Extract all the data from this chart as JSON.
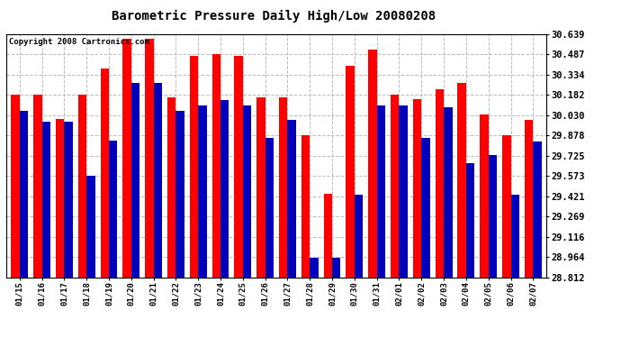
{
  "title": "Barometric Pressure Daily High/Low 20080208",
  "copyright": "Copyright 2008 Cartronics.com",
  "background_color": "#ffffff",
  "plot_bg_color": "#ffffff",
  "bar_color_high": "#ff0000",
  "bar_color_low": "#0000bb",
  "grid_color": "#bbbbbb",
  "categories": [
    "01/15",
    "01/16",
    "01/17",
    "01/18",
    "01/19",
    "01/20",
    "01/21",
    "01/22",
    "01/23",
    "01/24",
    "01/25",
    "01/26",
    "01/27",
    "01/28",
    "01/29",
    "01/30",
    "01/31",
    "02/01",
    "02/02",
    "02/03",
    "02/04",
    "02/05",
    "02/06",
    "02/07"
  ],
  "highs": [
    30.18,
    30.18,
    30.0,
    30.18,
    30.38,
    30.6,
    30.6,
    30.16,
    30.47,
    30.49,
    30.47,
    30.16,
    30.16,
    29.88,
    29.44,
    30.4,
    30.52,
    30.18,
    30.15,
    30.22,
    30.27,
    30.03,
    29.88,
    29.99
  ],
  "lows": [
    30.06,
    29.98,
    29.98,
    29.57,
    29.84,
    30.27,
    30.27,
    30.06,
    30.1,
    30.14,
    30.1,
    29.86,
    29.99,
    28.96,
    28.96,
    29.43,
    30.1,
    30.1,
    29.86,
    30.09,
    29.67,
    29.73,
    29.43,
    29.83
  ],
  "yticks": [
    28.812,
    28.964,
    29.116,
    29.269,
    29.421,
    29.573,
    29.725,
    29.878,
    30.03,
    30.182,
    30.334,
    30.487,
    30.639
  ],
  "ymin": 28.812,
  "ymax": 30.639,
  "title_fontsize": 10,
  "tick_fontsize": 6.5,
  "ytick_fontsize": 7.5
}
